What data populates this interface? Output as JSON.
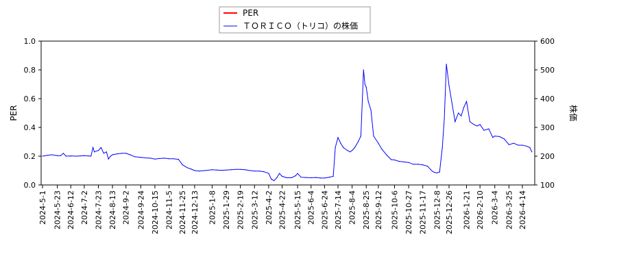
{
  "chart_data": {
    "type": "line",
    "title": "",
    "xlabel": "",
    "ylabel_left": "PER",
    "ylabel_right": "株価",
    "ylim_left": [
      0.0,
      1.0
    ],
    "ylim_right": [
      100,
      600
    ],
    "left_ticks": [
      "0.0",
      "0.2",
      "0.4",
      "0.6",
      "0.8",
      "1.0"
    ],
    "right_ticks": [
      "100",
      "200",
      "300",
      "400",
      "500",
      "600"
    ],
    "x_tick_labels": [
      "2024-5-1",
      "2024-5-23",
      "2024-6-12",
      "2024-7-2",
      "2024-7-23",
      "2024-8-13",
      "2024-9-2",
      "2024-9-24",
      "2024-10-15",
      "2024-11-5",
      "2024-11-25",
      "2024-12-13",
      "2025-1-8",
      "2025-1-29",
      "2025-2-19",
      "2025-3-12",
      "2025-4-2",
      "2025-4-22",
      "2025-5-15",
      "2025-6-4",
      "2025-6-24",
      "2025-7-14",
      "2025-8-4",
      "2025-8-25",
      "2025-9-12",
      "2025-10-6",
      "2025-10-27",
      "2025-11-17",
      "2025-12-8",
      "2025-12-26",
      "2026-1-21",
      "2026-2-10",
      "2026-3-4",
      "2026-3-25",
      "2026-4-14"
    ],
    "grid": false,
    "legend_position": "top-center",
    "series": [
      {
        "name": "PER",
        "color": "#ff0000",
        "axis": "left",
        "points": []
      },
      {
        "name": "ＴＯＲＩＣＯ（トリコ）の株価",
        "color": "#0000ff",
        "axis": "right",
        "points": [
          [
            "2024-5-1",
            200
          ],
          [
            "2024-5-8",
            203
          ],
          [
            "2024-5-15",
            205
          ],
          [
            "2024-5-23",
            202
          ],
          [
            "2024-5-28",
            202
          ],
          [
            "2024-6-1",
            210
          ],
          [
            "2024-6-5",
            200
          ],
          [
            "2024-6-12",
            201
          ],
          [
            "2024-6-20",
            200
          ],
          [
            "2024-6-26",
            201
          ],
          [
            "2024-7-2",
            202
          ],
          [
            "2024-7-8",
            201
          ],
          [
            "2024-7-12",
            200
          ],
          [
            "2024-7-15",
            230
          ],
          [
            "2024-7-17",
            215
          ],
          [
            "2024-7-23",
            220
          ],
          [
            "2024-7-27",
            230
          ],
          [
            "2024-7-31",
            210
          ],
          [
            "2024-8-4",
            215
          ],
          [
            "2024-8-7",
            190
          ],
          [
            "2024-8-10",
            200
          ],
          [
            "2024-8-13",
            205
          ],
          [
            "2024-8-20",
            208
          ],
          [
            "2024-8-27",
            210
          ],
          [
            "2024-9-2",
            210
          ],
          [
            "2024-9-8",
            205
          ],
          [
            "2024-9-15",
            198
          ],
          [
            "2024-9-24",
            196
          ],
          [
            "2024-10-1",
            194
          ],
          [
            "2024-10-8",
            193
          ],
          [
            "2024-10-15",
            190
          ],
          [
            "2024-10-22",
            192
          ],
          [
            "2024-10-29",
            193
          ],
          [
            "2024-11-5",
            191
          ],
          [
            "2024-11-12",
            191
          ],
          [
            "2024-11-19",
            189
          ],
          [
            "2024-11-25",
            170
          ],
          [
            "2024-12-2",
            160
          ],
          [
            "2024-12-8",
            155
          ],
          [
            "2024-12-13",
            150
          ],
          [
            "2024-12-20",
            148
          ],
          [
            "2024-12-28",
            150
          ],
          [
            "2025-1-8",
            153
          ],
          [
            "2025-1-15",
            152
          ],
          [
            "2025-1-22",
            151
          ],
          [
            "2025-1-29",
            152
          ],
          [
            "2025-2-5",
            153
          ],
          [
            "2025-2-12",
            154
          ],
          [
            "2025-2-19",
            154
          ],
          [
            "2025-2-26",
            153
          ],
          [
            "2025-3-5",
            150
          ],
          [
            "2025-3-12",
            148
          ],
          [
            "2025-3-19",
            148
          ],
          [
            "2025-3-26",
            146
          ],
          [
            "2025-4-2",
            140
          ],
          [
            "2025-4-6",
            120
          ],
          [
            "2025-4-10",
            115
          ],
          [
            "2025-4-14",
            125
          ],
          [
            "2025-4-18",
            140
          ],
          [
            "2025-4-22",
            130
          ],
          [
            "2025-4-29",
            125
          ],
          [
            "2025-5-6",
            125
          ],
          [
            "2025-5-12",
            132
          ],
          [
            "2025-5-15",
            140
          ],
          [
            "2025-5-20",
            127
          ],
          [
            "2025-5-27",
            126
          ],
          [
            "2025-6-4",
            125
          ],
          [
            "2025-6-11",
            126
          ],
          [
            "2025-6-18",
            124
          ],
          [
            "2025-6-24",
            124
          ],
          [
            "2025-7-1",
            127
          ],
          [
            "2025-7-7",
            130
          ],
          [
            "2025-7-10",
            230
          ],
          [
            "2025-7-14",
            265
          ],
          [
            "2025-7-18",
            245
          ],
          [
            "2025-7-22",
            230
          ],
          [
            "2025-7-28",
            220
          ],
          [
            "2025-8-1",
            215
          ],
          [
            "2025-8-4",
            220
          ],
          [
            "2025-8-8",
            230
          ],
          [
            "2025-8-13",
            250
          ],
          [
            "2025-8-17",
            270
          ],
          [
            "2025-8-21",
            500
          ],
          [
            "2025-8-23",
            450
          ],
          [
            "2025-8-25",
            440
          ],
          [
            "2025-8-28",
            390
          ],
          [
            "2025-9-1",
            360
          ],
          [
            "2025-9-5",
            270
          ],
          [
            "2025-9-12",
            245
          ],
          [
            "2025-9-17",
            225
          ],
          [
            "2025-9-24",
            205
          ],
          [
            "2025-10-1",
            188
          ],
          [
            "2025-10-6",
            187
          ],
          [
            "2025-10-13",
            182
          ],
          [
            "2025-10-20",
            180
          ],
          [
            "2025-10-27",
            178
          ],
          [
            "2025-11-3",
            172
          ],
          [
            "2025-11-10",
            172
          ],
          [
            "2025-11-17",
            170
          ],
          [
            "2025-11-24",
            165
          ],
          [
            "2025-12-1",
            148
          ],
          [
            "2025-12-5",
            143
          ],
          [
            "2025-12-8",
            142
          ],
          [
            "2025-12-12",
            145
          ],
          [
            "2025-12-16",
            230
          ],
          [
            "2025-12-19",
            330
          ],
          [
            "2025-12-22",
            520
          ],
          [
            "2025-12-26",
            445
          ],
          [
            "2025-12-30",
            390
          ],
          [
            "2026-1-4",
            320
          ],
          [
            "2026-1-9",
            350
          ],
          [
            "2026-1-13",
            340
          ],
          [
            "2026-1-17",
            370
          ],
          [
            "2026-1-21",
            390
          ],
          [
            "2026-1-26",
            320
          ],
          [
            "2026-2-1",
            310
          ],
          [
            "2026-2-6",
            305
          ],
          [
            "2026-2-10",
            310
          ],
          [
            "2026-2-16",
            290
          ],
          [
            "2026-2-23",
            295
          ],
          [
            "2026-3-1",
            265
          ],
          [
            "2026-3-4",
            270
          ],
          [
            "2026-3-11",
            268
          ],
          [
            "2026-3-18",
            260
          ],
          [
            "2026-3-25",
            240
          ],
          [
            "2026-4-1",
            245
          ],
          [
            "2026-4-8",
            238
          ],
          [
            "2026-4-14",
            238
          ],
          [
            "2026-4-20",
            235
          ],
          [
            "2026-4-25",
            230
          ],
          [
            "2026-4-28",
            215
          ]
        ]
      }
    ]
  }
}
